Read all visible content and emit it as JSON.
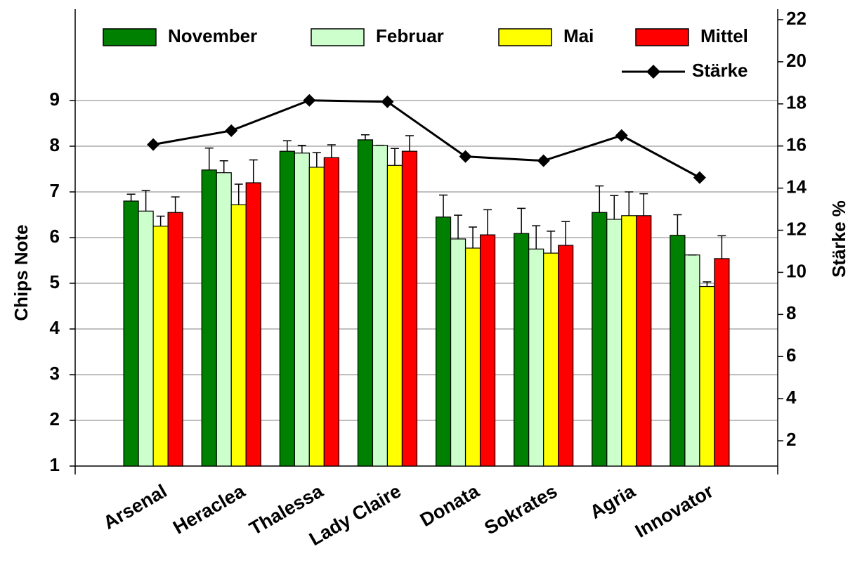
{
  "chart_data": {
    "type": "bar",
    "categories": [
      "Arsenal",
      "Heraclea",
      "Thalessa",
      "Lady Claire",
      "Donata",
      "Sokrates",
      "Agria",
      "Innovator"
    ],
    "y_label": "Chips Note",
    "y2_label": "Stärke %",
    "ylim": [
      1,
      11
    ],
    "yticks": [
      1,
      2,
      3,
      4,
      5,
      6,
      7,
      8,
      9
    ],
    "y2lim": [
      0.8,
      22.5
    ],
    "y2ticks": [
      2,
      4,
      6,
      8,
      10,
      12,
      14,
      16,
      18,
      20,
      22
    ],
    "grid": true,
    "legend": "top",
    "series": [
      {
        "name": "November",
        "type": "bar",
        "color": "#008000",
        "values": [
          6.8,
          7.48,
          7.89,
          8.14,
          6.45,
          6.09,
          6.55,
          6.05
        ],
        "errors": [
          0.15,
          0.48,
          0.23,
          0.11,
          0.48,
          0.55,
          0.58,
          0.45
        ]
      },
      {
        "name": "Februar",
        "type": "bar",
        "color": "#ccffcc",
        "values": [
          6.58,
          7.42,
          7.85,
          8.02,
          5.97,
          5.75,
          6.4,
          5.62
        ],
        "errors": [
          0.45,
          0.26,
          0.17,
          0,
          0.52,
          0.51,
          0.52,
          0
        ]
      },
      {
        "name": "Mai",
        "type": "bar",
        "color": "#ffff00",
        "values": [
          6.25,
          6.72,
          7.54,
          7.58,
          5.77,
          5.66,
          6.48,
          4.93
        ],
        "errors": [
          0.22,
          0.45,
          0.32,
          0.37,
          0.46,
          0.48,
          0.52,
          0.1
        ]
      },
      {
        "name": "Mittel",
        "type": "bar",
        "color": "#ff0000",
        "values": [
          6.55,
          7.2,
          7.75,
          7.89,
          6.06,
          5.83,
          6.48,
          5.54
        ],
        "errors": [
          0.34,
          0.5,
          0.28,
          0.34,
          0.55,
          0.52,
          0.48,
          0.5
        ]
      },
      {
        "name": "Stärke",
        "type": "line",
        "axis": "y2",
        "color": "#000000",
        "values": [
          16.07,
          16.73,
          18.17,
          18.1,
          15.5,
          15.3,
          16.5,
          14.5
        ]
      }
    ]
  }
}
